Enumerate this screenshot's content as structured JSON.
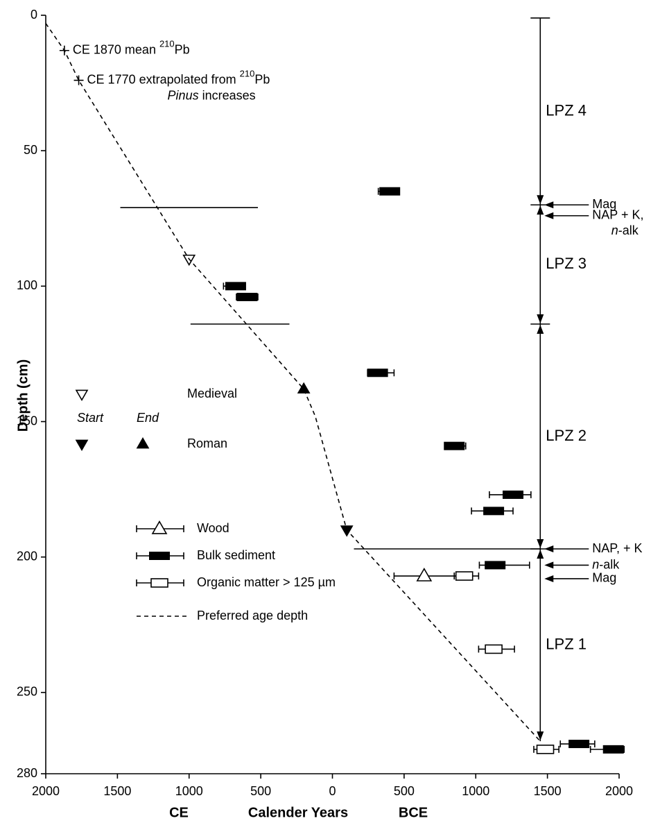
{
  "chart_data": {
    "type": "scatter",
    "ylabel": "Depth (cm)",
    "xlabel": {
      "left": "CE",
      "center": "Calender Years",
      "right": "BCE"
    },
    "xlim": [
      -2000,
      2000
    ],
    "xticks": [
      {
        "value": -2000,
        "label": "2000"
      },
      {
        "value": -1500,
        "label": "1500"
      },
      {
        "value": -1000,
        "label": "1000"
      },
      {
        "value": -500,
        "label": "500"
      },
      0,
      500,
      1000,
      1500,
      2000
    ],
    "ylim": [
      0,
      280
    ],
    "y_inverted": true,
    "yticks": [
      0,
      50,
      100,
      150,
      200,
      250,
      280
    ],
    "color": "#000000",
    "age_model": {
      "name": "Preferred age depth",
      "style": "dashed",
      "x": [
        -2000,
        -1870,
        -1770,
        -1000,
        -200,
        -120,
        100,
        1450
      ],
      "y": [
        3,
        13,
        24,
        90,
        138,
        148,
        190,
        268
      ]
    },
    "series": [
      {
        "name": "Wood",
        "marker": "open-triangle",
        "x": [
          640
        ],
        "xmin": [
          430
        ],
        "xmax": [
          850
        ],
        "y": [
          207
        ]
      },
      {
        "name": "Bulk sediment",
        "marker": "filled-rect",
        "x": [
          400,
          -675,
          -595,
          315,
          850,
          1260,
          1125,
          1135,
          1720,
          1960
        ],
        "xmin": [
          320,
          -760,
          -670,
          245,
          810,
          1095,
          970,
          1025,
          1590,
          1800
        ],
        "xmax": [
          460,
          -635,
          -520,
          430,
          930,
          1385,
          1260,
          1375,
          1830,
          2035
        ],
        "y": [
          65,
          100,
          104,
          132,
          159,
          177,
          183,
          203,
          269,
          271
        ]
      },
      {
        "name": "Organic matter > 125 µm",
        "marker": "open-rect",
        "x": [
          920,
          1125,
          1485
        ],
        "xmin": [
          850,
          1020,
          1405
        ],
        "xmax": [
          1020,
          1270,
          1580
        ],
        "y": [
          207,
          234,
          271
        ]
      }
    ],
    "tie_points": [
      {
        "x": -1870,
        "y": 13,
        "text": "CE 1870 mean ",
        "sup": "210",
        "after": "Pb"
      },
      {
        "x": -1770,
        "y": 24,
        "text": "CE 1770 extrapolated from ",
        "sup": "210",
        "after": "Pb",
        "line2_italic": "Pinus",
        "line2": " increases"
      }
    ],
    "period_markers": {
      "start_label": "Start",
      "end_label": "End",
      "periods": [
        {
          "name": "Medieval",
          "fill": "none",
          "start": {
            "x": -1000,
            "y": 90
          }
        },
        {
          "name": "Roman",
          "fill": "#000000",
          "start": {
            "x": 100,
            "y": 190
          },
          "end": {
            "x": -200,
            "y": 138
          }
        }
      ]
    },
    "boundary_lines": [
      {
        "y": 71,
        "x": [
          -1480,
          -520
        ]
      },
      {
        "y": 114,
        "x": [
          -990,
          -300
        ]
      },
      {
        "y": 197,
        "x": [
          150,
          1450
        ]
      }
    ],
    "zones": {
      "x": 1450,
      "items": [
        {
          "label": "LPZ 4",
          "top": 1,
          "bottom": 70
        },
        {
          "label": "LPZ 3",
          "top": 70,
          "bottom": 114
        },
        {
          "label": "LPZ 2",
          "top": 114,
          "bottom": 197
        },
        {
          "label": "LPZ 1",
          "top": 197,
          "bottom": 268
        }
      ]
    },
    "indicators": [
      {
        "y": 70,
        "lines": [
          "Mag"
        ]
      },
      {
        "y": 74,
        "lines": [
          "NAP + K,",
          {
            "italic": "n",
            "text": "-alk"
          }
        ]
      },
      {
        "y": 197,
        "lines": [
          "NAP, + K"
        ]
      },
      {
        "y": 203,
        "lines": [
          {
            "italic": "n",
            "text": "-alk"
          }
        ]
      },
      {
        "y": 208,
        "lines": [
          "Mag"
        ]
      }
    ]
  }
}
